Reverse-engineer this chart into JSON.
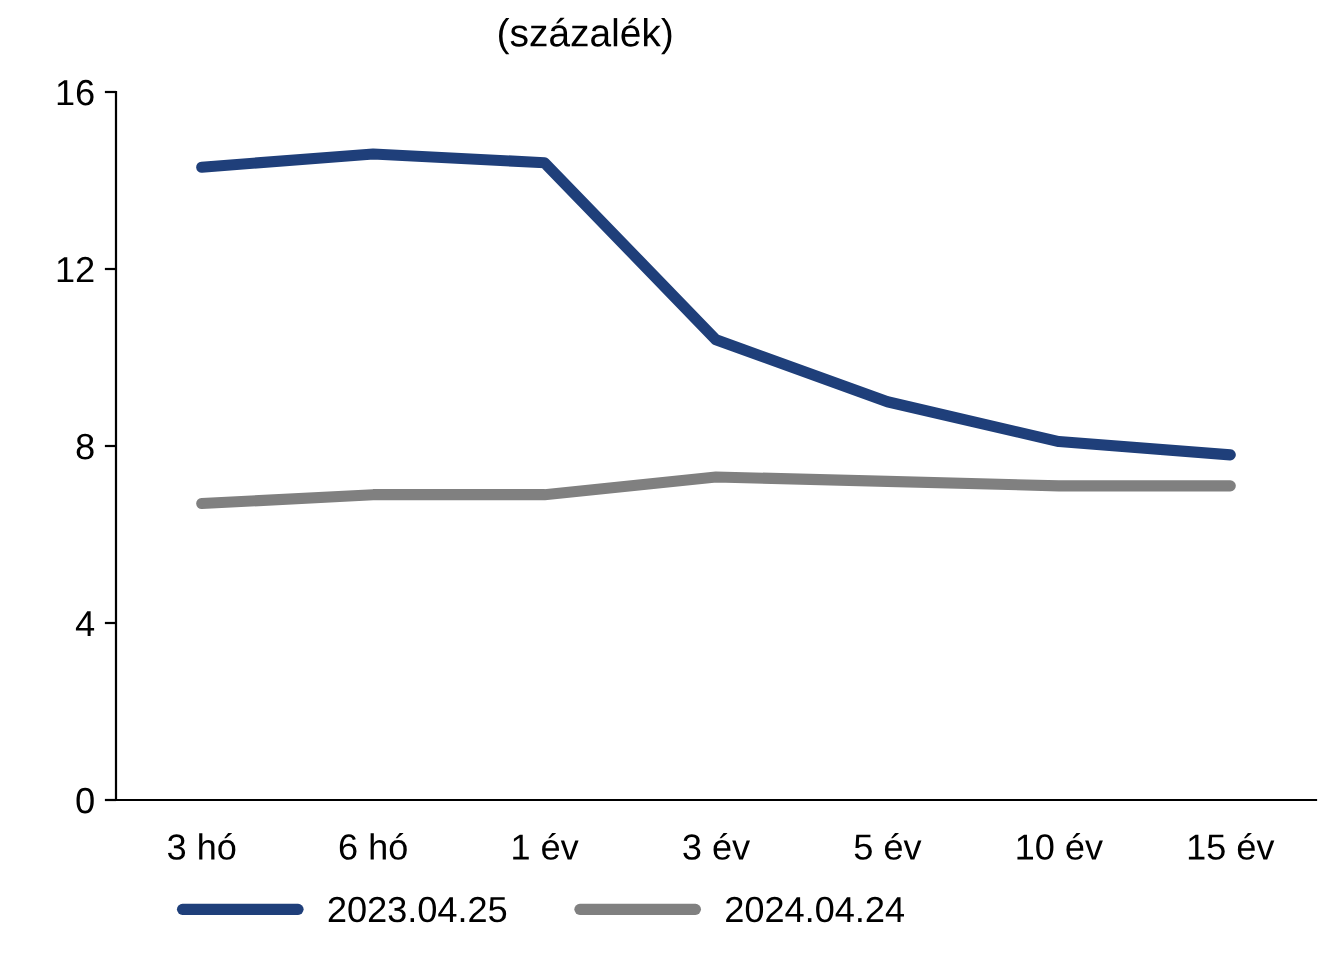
{
  "chart_data": {
    "type": "line",
    "subtitle": "(százalék)",
    "categories": [
      "3 hó",
      "6 hó",
      "1 év",
      "3 év",
      "5 év",
      "10 év",
      "15 év"
    ],
    "series": [
      {
        "name": "2023.04.25",
        "color": "#1f3f7a",
        "values": [
          14.3,
          14.6,
          14.4,
          10.4,
          9.0,
          8.1,
          7.8
        ]
      },
      {
        "name": "2024.04.24",
        "color": "#808080",
        "values": [
          6.7,
          6.9,
          6.9,
          7.3,
          7.2,
          7.1,
          7.1
        ]
      }
    ],
    "ylim": [
      0,
      16
    ],
    "yticks": [
      0,
      4,
      8,
      12,
      16
    ],
    "grid": false,
    "legend": "bottom left",
    "marker": "none",
    "line_style": "solid"
  }
}
